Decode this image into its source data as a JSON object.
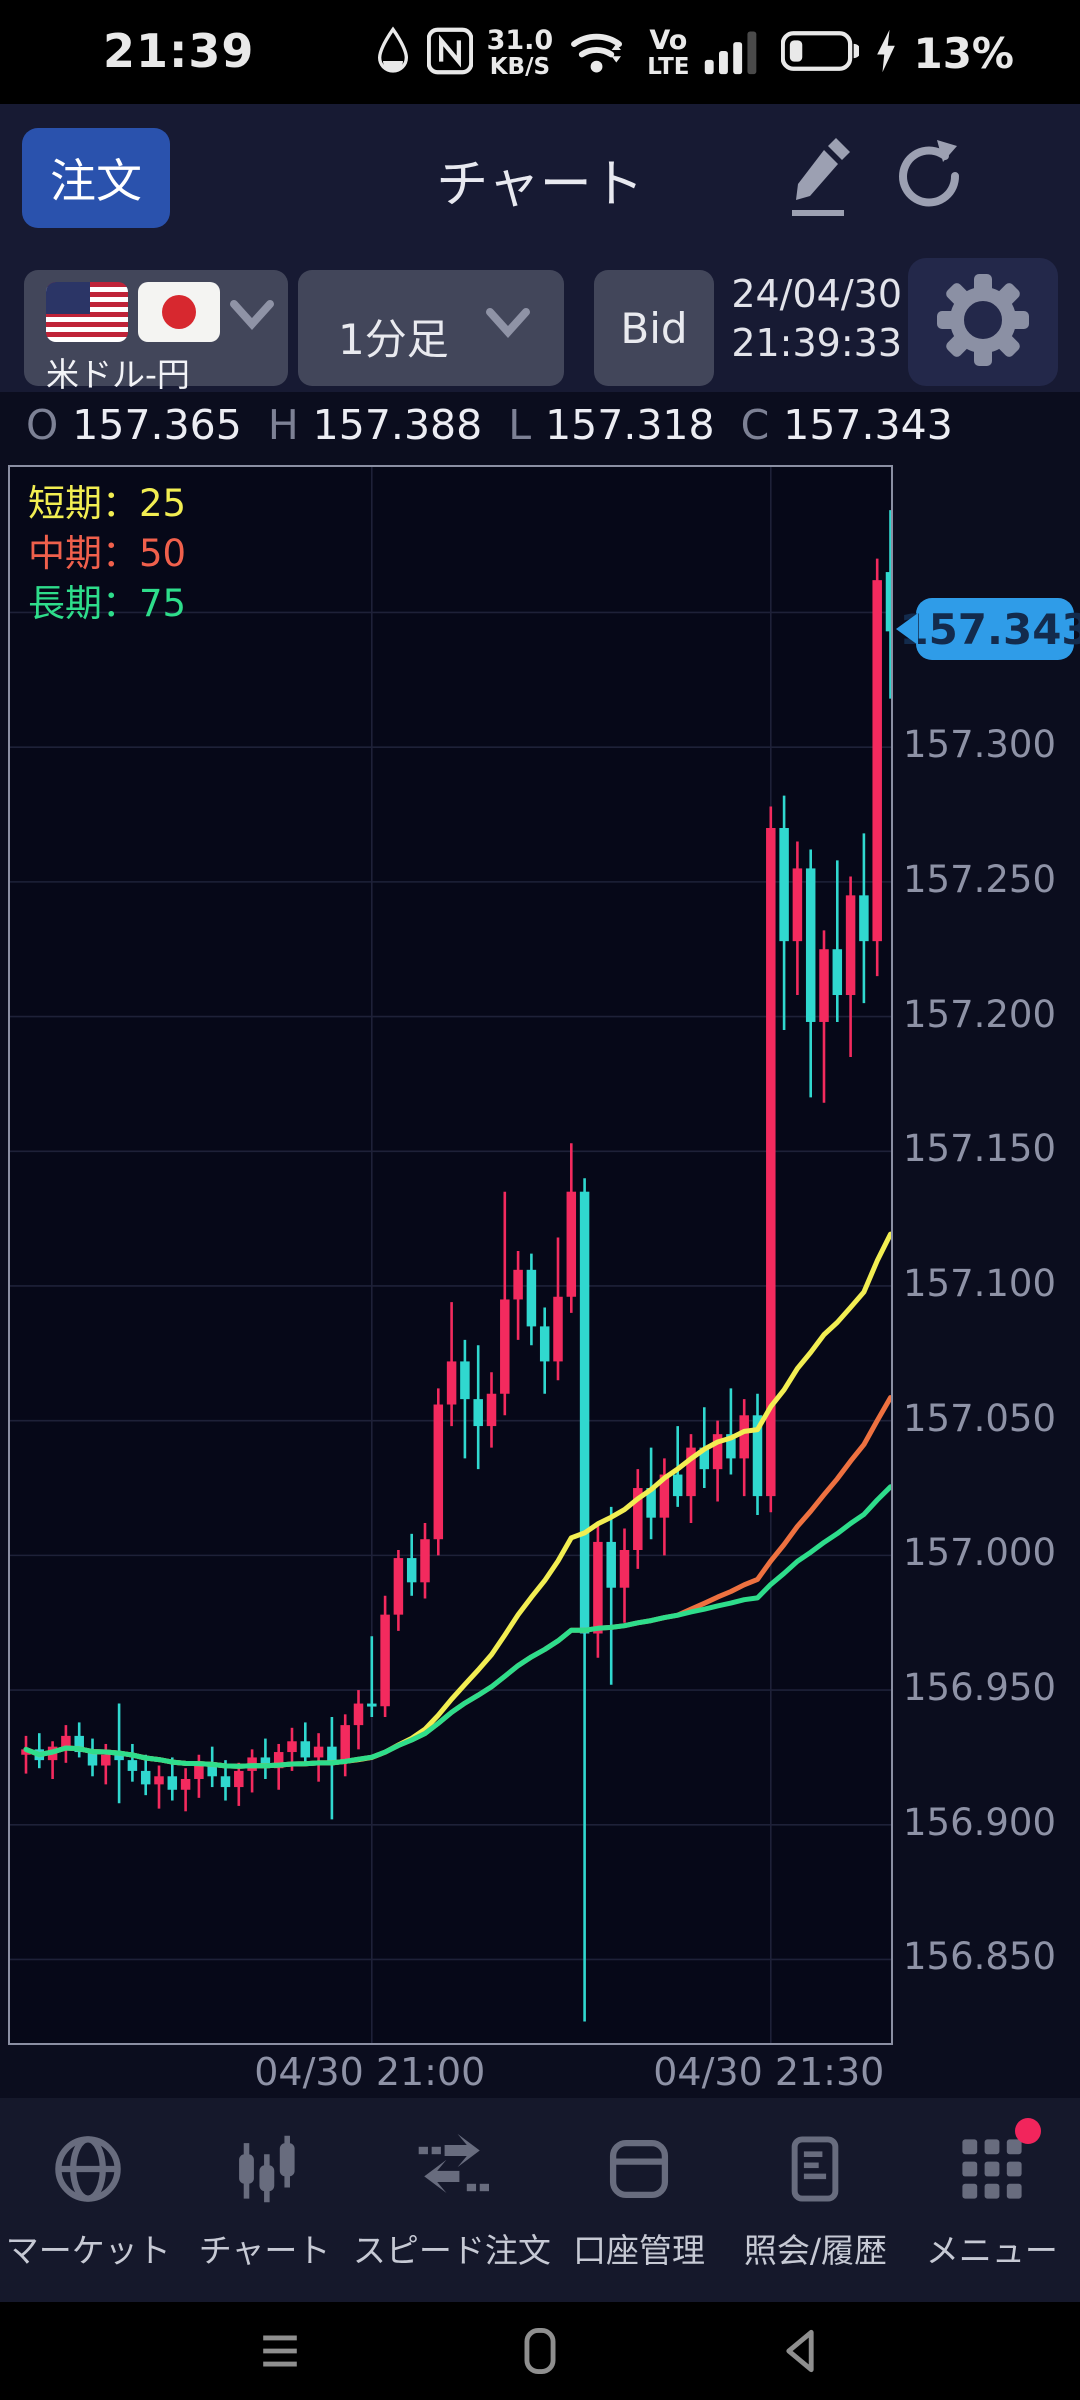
{
  "status_bar": {
    "time": "21:39",
    "net_speed_value": "31.0",
    "net_speed_unit": "KB/S",
    "volte_top": "Vo",
    "volte_bottom": "LTE",
    "battery_percent": "13%"
  },
  "header": {
    "order_button": "注文",
    "title": "チャート"
  },
  "controls": {
    "pair_label": "米ドル-円",
    "timeframe": "1分足",
    "price_side": "Bid",
    "quote_date": "24/04/30",
    "quote_time": "21:39:33"
  },
  "ohlc": {
    "o_label": "O",
    "o_value": "157.365",
    "h_label": "H",
    "h_value": "157.388",
    "l_label": "L",
    "l_value": "157.318",
    "c_label": "C",
    "c_value": "157.343"
  },
  "legend": [
    {
      "text": "短期：25",
      "color": "#f2ee52"
    },
    {
      "text": "中期：50",
      "color": "#f0604c"
    },
    {
      "text": "長期：75",
      "color": "#2edd8b"
    }
  ],
  "price_badge": "157.343",
  "chart_data": {
    "type": "candlestick",
    "pair": "米ドル-円",
    "timeframe": "1分足",
    "colors": {
      "up": "#f32a5e",
      "down": "#30d8cf",
      "grid": "#1e2138",
      "plot_bg": "#060818"
    },
    "scale": {
      "price_top": 157.404,
      "price_bottom": 156.819,
      "x0": 16,
      "x_step": 13.3,
      "body_width": 9.5
    },
    "y_axis": [
      {
        "price": 157.3,
        "label": "157.300"
      },
      {
        "price": 157.25,
        "label": "157.250"
      },
      {
        "price": 157.2,
        "label": "157.200"
      },
      {
        "price": 157.15,
        "label": "157.150"
      },
      {
        "price": 157.1,
        "label": "157.100"
      },
      {
        "price": 157.05,
        "label": "157.050"
      },
      {
        "price": 157.0,
        "label": "157.000"
      },
      {
        "price": 156.95,
        "label": "156.950"
      },
      {
        "price": 156.9,
        "label": "156.900"
      },
      {
        "price": 156.85,
        "label": "156.850"
      }
    ],
    "y_grid_extra": [
      157.35
    ],
    "x_ticks": [
      {
        "index": 26,
        "label": "04/30 21:00"
      },
      {
        "index": 56,
        "label": "04/30 21:30"
      }
    ],
    "moving_averages": [
      {
        "name": "短期",
        "period": 25,
        "color": "#f2ee52"
      },
      {
        "name": "中期",
        "period": 50,
        "color": "#ee7140"
      },
      {
        "name": "長期",
        "period": 75,
        "color": "#2edd8b"
      }
    ],
    "last_close": 157.343,
    "candles_ohlc": [
      [
        156.926,
        156.933,
        156.919,
        156.928
      ],
      [
        156.928,
        156.934,
        156.921,
        156.924
      ],
      [
        156.924,
        156.931,
        156.917,
        156.929
      ],
      [
        156.929,
        156.937,
        156.923,
        156.933
      ],
      [
        156.933,
        156.938,
        156.925,
        156.927
      ],
      [
        156.927,
        156.932,
        156.918,
        156.922
      ],
      [
        156.922,
        156.93,
        156.915,
        156.926
      ],
      [
        156.926,
        156.945,
        156.908,
        156.924
      ],
      [
        156.924,
        156.93,
        156.916,
        156.92
      ],
      [
        156.92,
        156.926,
        156.911,
        156.915
      ],
      [
        156.915,
        156.922,
        156.906,
        156.918
      ],
      [
        156.918,
        156.925,
        156.909,
        156.913
      ],
      [
        156.913,
        156.921,
        156.905,
        156.917
      ],
      [
        156.917,
        156.926,
        156.91,
        156.922
      ],
      [
        156.922,
        156.929,
        156.914,
        156.918
      ],
      [
        156.918,
        156.924,
        156.909,
        156.914
      ],
      [
        156.914,
        156.923,
        156.907,
        156.92
      ],
      [
        156.92,
        156.928,
        156.912,
        156.925
      ],
      [
        156.925,
        156.932,
        156.917,
        156.921
      ],
      [
        156.921,
        156.93,
        156.913,
        156.927
      ],
      [
        156.927,
        156.936,
        156.92,
        156.931
      ],
      [
        156.931,
        156.938,
        156.922,
        156.925
      ],
      [
        156.925,
        156.934,
        156.916,
        156.929
      ],
      [
        156.929,
        156.94,
        156.902,
        156.923
      ],
      [
        156.923,
        156.941,
        156.918,
        156.937
      ],
      [
        156.937,
        156.95,
        156.928,
        156.945
      ],
      [
        156.945,
        156.97,
        156.94,
        156.944
      ],
      [
        156.944,
        156.985,
        156.94,
        156.978
      ],
      [
        156.978,
        157.002,
        156.972,
        156.999
      ],
      [
        156.999,
        157.008,
        156.985,
        156.99
      ],
      [
        156.99,
        157.012,
        156.984,
        157.006
      ],
      [
        157.006,
        157.062,
        157.0,
        157.056
      ],
      [
        157.056,
        157.094,
        157.048,
        157.072
      ],
      [
        157.072,
        157.08,
        157.036,
        157.058
      ],
      [
        157.058,
        157.078,
        157.032,
        157.048
      ],
      [
        157.048,
        157.068,
        157.04,
        157.06
      ],
      [
        157.06,
        157.135,
        157.052,
        157.095
      ],
      [
        157.095,
        157.113,
        157.08,
        157.106
      ],
      [
        157.106,
        157.112,
        157.078,
        157.085
      ],
      [
        157.085,
        157.092,
        157.06,
        157.072
      ],
      [
        157.072,
        157.118,
        157.065,
        157.096
      ],
      [
        157.096,
        157.153,
        157.09,
        157.135
      ],
      [
        157.135,
        157.14,
        156.827,
        156.971
      ],
      [
        156.971,
        157.012,
        156.962,
        157.005
      ],
      [
        157.005,
        157.018,
        156.952,
        156.988
      ],
      [
        156.988,
        157.01,
        156.975,
        157.002
      ],
      [
        157.002,
        157.032,
        156.995,
        157.025
      ],
      [
        157.025,
        157.04,
        157.006,
        157.014
      ],
      [
        157.014,
        157.036,
        157.0,
        157.03
      ],
      [
        157.03,
        157.048,
        157.018,
        157.022
      ],
      [
        157.022,
        157.045,
        157.012,
        157.04
      ],
      [
        157.04,
        157.055,
        157.025,
        157.032
      ],
      [
        157.032,
        157.05,
        157.02,
        157.045
      ],
      [
        157.045,
        157.062,
        157.03,
        157.036
      ],
      [
        157.036,
        157.058,
        157.022,
        157.052
      ],
      [
        157.052,
        157.06,
        157.015,
        157.022
      ],
      [
        157.022,
        157.278,
        157.016,
        157.27
      ],
      [
        157.27,
        157.282,
        157.195,
        157.228
      ],
      [
        157.228,
        157.265,
        157.208,
        157.255
      ],
      [
        157.255,
        157.262,
        157.17,
        157.198
      ],
      [
        157.198,
        157.232,
        157.168,
        157.225
      ],
      [
        157.225,
        157.258,
        157.198,
        157.208
      ],
      [
        157.208,
        157.252,
        157.185,
        157.245
      ],
      [
        157.245,
        157.268,
        157.205,
        157.228
      ],
      [
        157.228,
        157.37,
        157.215,
        157.362
      ],
      [
        157.365,
        157.388,
        157.318,
        157.343
      ]
    ]
  },
  "bottom_nav": [
    {
      "label": "マーケット"
    },
    {
      "label": "チャート"
    },
    {
      "label": "スピード注文"
    },
    {
      "label": "口座管理"
    },
    {
      "label": "照会/履歴"
    },
    {
      "label": "メニュー"
    }
  ]
}
